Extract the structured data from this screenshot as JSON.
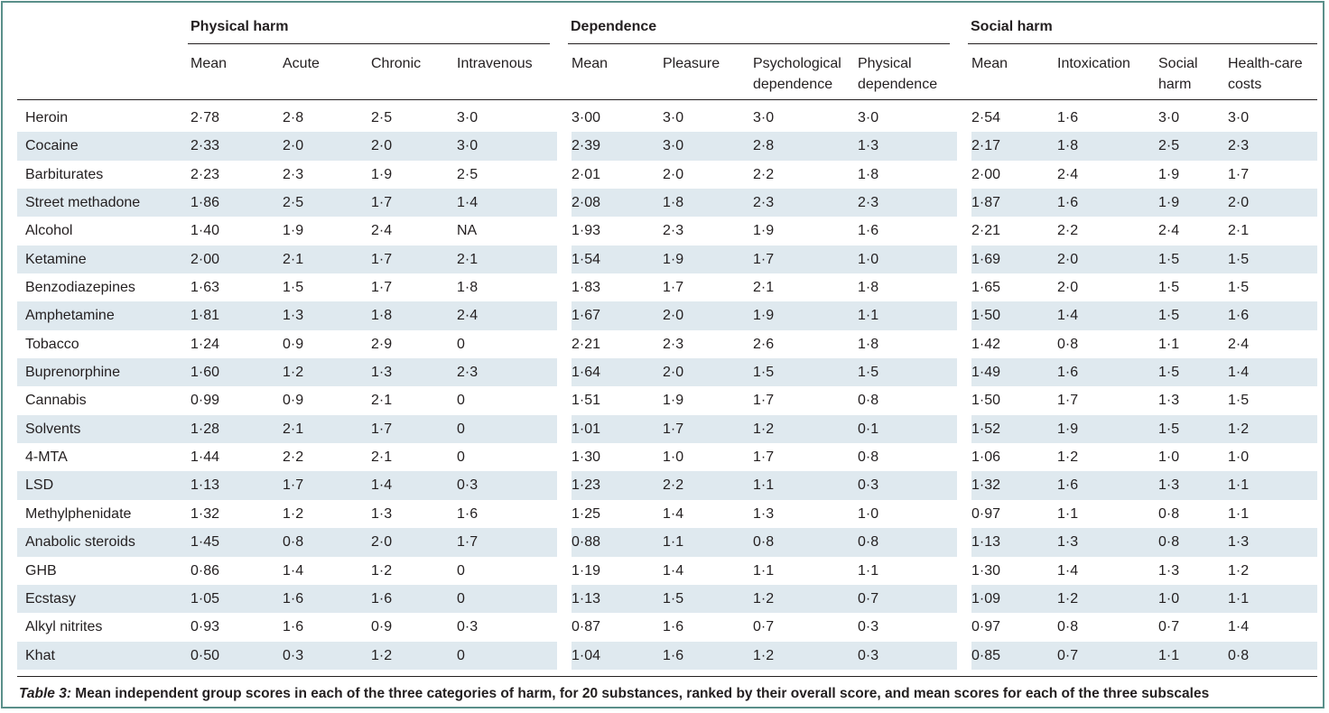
{
  "groups": [
    {
      "label": "Physical harm"
    },
    {
      "label": "Dependence"
    },
    {
      "label": "Social harm"
    }
  ],
  "columns": [
    [
      "Mean"
    ],
    [
      "Acute"
    ],
    [
      "Chronic"
    ],
    [
      "Intravenous"
    ],
    [
      "Mean"
    ],
    [
      "Pleasure"
    ],
    [
      "Psychological",
      "dependence"
    ],
    [
      "Physical",
      "dependence"
    ],
    [
      "Mean"
    ],
    [
      "Intoxication"
    ],
    [
      "Social",
      "harm"
    ],
    [
      "Health-care",
      "costs"
    ]
  ],
  "rows": [
    {
      "name": "Heroin",
      "values": [
        "2·78",
        "2·8",
        "2·5",
        "3·0",
        "3·00",
        "3·0",
        "3·0",
        "3·0",
        "2·54",
        "1·6",
        "3·0",
        "3·0"
      ]
    },
    {
      "name": "Cocaine",
      "values": [
        "2·33",
        "2·0",
        "2·0",
        "3·0",
        "2·39",
        "3·0",
        "2·8",
        "1·3",
        "2·17",
        "1·8",
        "2·5",
        "2·3"
      ]
    },
    {
      "name": "Barbiturates",
      "values": [
        "2·23",
        "2·3",
        "1·9",
        "2·5",
        "2·01",
        "2·0",
        "2·2",
        "1·8",
        "2·00",
        "2·4",
        "1·9",
        "1·7"
      ]
    },
    {
      "name": "Street methadone",
      "values": [
        "1·86",
        "2·5",
        "1·7",
        "1·4",
        "2·08",
        "1·8",
        "2·3",
        "2·3",
        "1·87",
        "1·6",
        "1·9",
        "2·0"
      ]
    },
    {
      "name": "Alcohol",
      "values": [
        "1·40",
        "1·9",
        "2·4",
        "NA",
        "1·93",
        "2·3",
        "1·9",
        "1·6",
        "2·21",
        "2·2",
        "2·4",
        "2·1"
      ]
    },
    {
      "name": "Ketamine",
      "values": [
        "2·00",
        "2·1",
        "1·7",
        "2·1",
        "1·54",
        "1·9",
        "1·7",
        "1·0",
        "1·69",
        "2·0",
        "1·5",
        "1·5"
      ]
    },
    {
      "name": "Benzodiazepines",
      "values": [
        "1·63",
        "1·5",
        "1·7",
        "1·8",
        "1·83",
        "1·7",
        "2·1",
        "1·8",
        "1·65",
        "2·0",
        "1·5",
        "1·5"
      ]
    },
    {
      "name": "Amphetamine",
      "values": [
        "1·81",
        "1·3",
        "1·8",
        "2·4",
        "1·67",
        "2·0",
        "1·9",
        "1·1",
        "1·50",
        "1·4",
        "1·5",
        "1·6"
      ]
    },
    {
      "name": "Tobacco",
      "values": [
        "1·24",
        "0·9",
        "2·9",
        "0",
        "2·21",
        "2·3",
        "2·6",
        "1·8",
        "1·42",
        "0·8",
        "1·1",
        "2·4"
      ]
    },
    {
      "name": "Buprenorphine",
      "values": [
        "1·60",
        "1·2",
        "1·3",
        "2·3",
        "1·64",
        "2·0",
        "1·5",
        "1·5",
        "1·49",
        "1·6",
        "1·5",
        "1·4"
      ]
    },
    {
      "name": "Cannabis",
      "values": [
        "0·99",
        "0·9",
        "2·1",
        "0",
        "1·51",
        "1·9",
        "1·7",
        "0·8",
        "1·50",
        "1·7",
        "1·3",
        "1·5"
      ]
    },
    {
      "name": "Solvents",
      "values": [
        "1·28",
        "2·1",
        "1·7",
        "0",
        "1·01",
        "1·7",
        "1·2",
        "0·1",
        "1·52",
        "1·9",
        "1·5",
        "1·2"
      ]
    },
    {
      "name": "4-MTA",
      "values": [
        "1·44",
        "2·2",
        "2·1",
        "0",
        "1·30",
        "1·0",
        "1·7",
        "0·8",
        "1·06",
        "1·2",
        "1·0",
        "1·0"
      ]
    },
    {
      "name": "LSD",
      "values": [
        "1·13",
        "1·7",
        "1·4",
        "0·3",
        "1·23",
        "2·2",
        "1·1",
        "0·3",
        "1·32",
        "1·6",
        "1·3",
        "1·1"
      ]
    },
    {
      "name": "Methylphenidate",
      "values": [
        "1·32",
        "1·2",
        "1·3",
        "1·6",
        "1·25",
        "1·4",
        "1·3",
        "1·0",
        "0·97",
        "1·1",
        "0·8",
        "1·1"
      ]
    },
    {
      "name": "Anabolic steroids",
      "values": [
        "1·45",
        "0·8",
        "2·0",
        "1·7",
        "0·88",
        "1·1",
        "0·8",
        "0·8",
        "1·13",
        "1·3",
        "0·8",
        "1·3"
      ]
    },
    {
      "name": "GHB",
      "values": [
        "0·86",
        "1·4",
        "1·2",
        "0",
        "1·19",
        "1·4",
        "1·1",
        "1·1",
        "1·30",
        "1·4",
        "1·3",
        "1·2"
      ]
    },
    {
      "name": "Ecstasy",
      "values": [
        "1·05",
        "1·6",
        "1·6",
        "0",
        "1·13",
        "1·5",
        "1·2",
        "0·7",
        "1·09",
        "1·2",
        "1·0",
        "1·1"
      ]
    },
    {
      "name": "Alkyl nitrites",
      "values": [
        "0·93",
        "1·6",
        "0·9",
        "0·3",
        "0·87",
        "1·6",
        "0·7",
        "0·3",
        "0·97",
        "0·8",
        "0·7",
        "1·4"
      ]
    },
    {
      "name": "Khat",
      "values": [
        "0·50",
        "0·3",
        "1·2",
        "0",
        "1·04",
        "1·6",
        "1·2",
        "0·3",
        "0·85",
        "0·7",
        "1·1",
        "0·8"
      ]
    }
  ],
  "caption": {
    "label": "Table 3:",
    "text": " Mean independent group scores in each of the three categories of harm, for 20 substances, ranked by their overall score, and mean scores for each of the three subscales"
  },
  "colors": {
    "stripe": "#dfe9ef",
    "border": "#5a8f8a",
    "text": "#231f20"
  }
}
